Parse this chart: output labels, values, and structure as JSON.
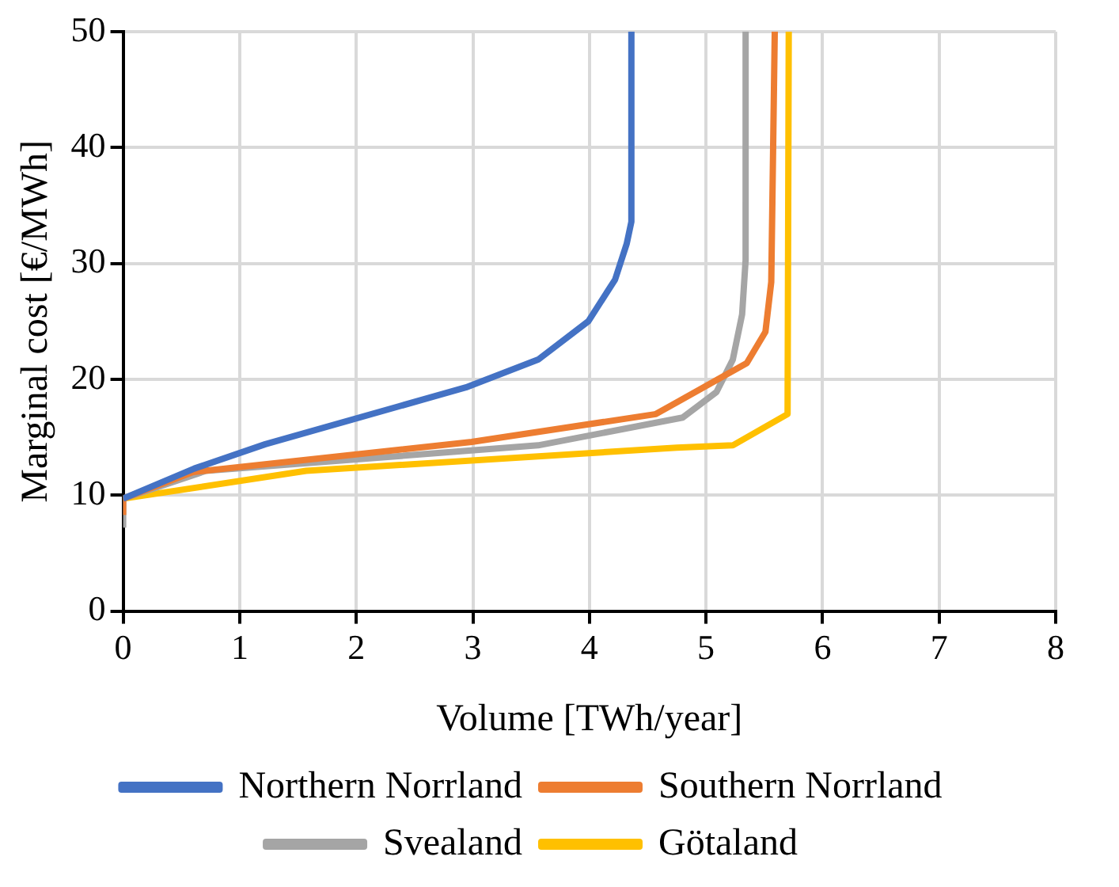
{
  "chart_data": {
    "type": "line",
    "xlabel": "Volume [TWh/year]",
    "ylabel": "Marginal cost [€/MWh]",
    "xlim": [
      0,
      8
    ],
    "xticks": [
      0,
      1,
      2,
      3,
      4,
      5,
      6,
      7,
      8
    ],
    "ylim": [
      0,
      50
    ],
    "yticks": [
      0,
      10,
      20,
      30,
      40,
      50
    ],
    "grid": true,
    "legend": "bottom",
    "marker": "none",
    "line_style": "solid",
    "series": [
      {
        "name": "Northern Norrland",
        "color": "#4472c4",
        "x": [
          0,
          0.61,
          1.22,
          2.94,
          3.56,
          3.99,
          4.22,
          4.32,
          4.36,
          4.36
        ],
        "values": [
          9.7,
          12.3,
          14.4,
          19.3,
          21.7,
          25,
          28.6,
          31.7,
          33.6,
          50
        ]
      },
      {
        "name": "Southern Norrland",
        "color": "#ed7d31",
        "x": [
          0,
          0,
          0.6,
          2.99,
          4.57,
          5.35,
          5.51,
          5.56,
          5.59
        ],
        "values": [
          8.3,
          9.7,
          12,
          14.6,
          17,
          21.4,
          24.1,
          28.4,
          50
        ]
      },
      {
        "name": "Svealand",
        "color": "#a5a5a5",
        "x": [
          0,
          0,
          0.71,
          3.56,
          4.8,
          5.09,
          5.23,
          5.31,
          5.34,
          5.34
        ],
        "values": [
          7.2,
          9.7,
          12.1,
          14.3,
          16.7,
          18.9,
          21.7,
          25.6,
          30.3,
          50
        ]
      },
      {
        "name": "Götaland",
        "color": "#ffc000",
        "x": [
          0,
          1.57,
          4.75,
          5.23,
          5.7,
          5.71
        ],
        "values": [
          9.7,
          12.1,
          14.1,
          14.3,
          17,
          50
        ]
      }
    ]
  }
}
